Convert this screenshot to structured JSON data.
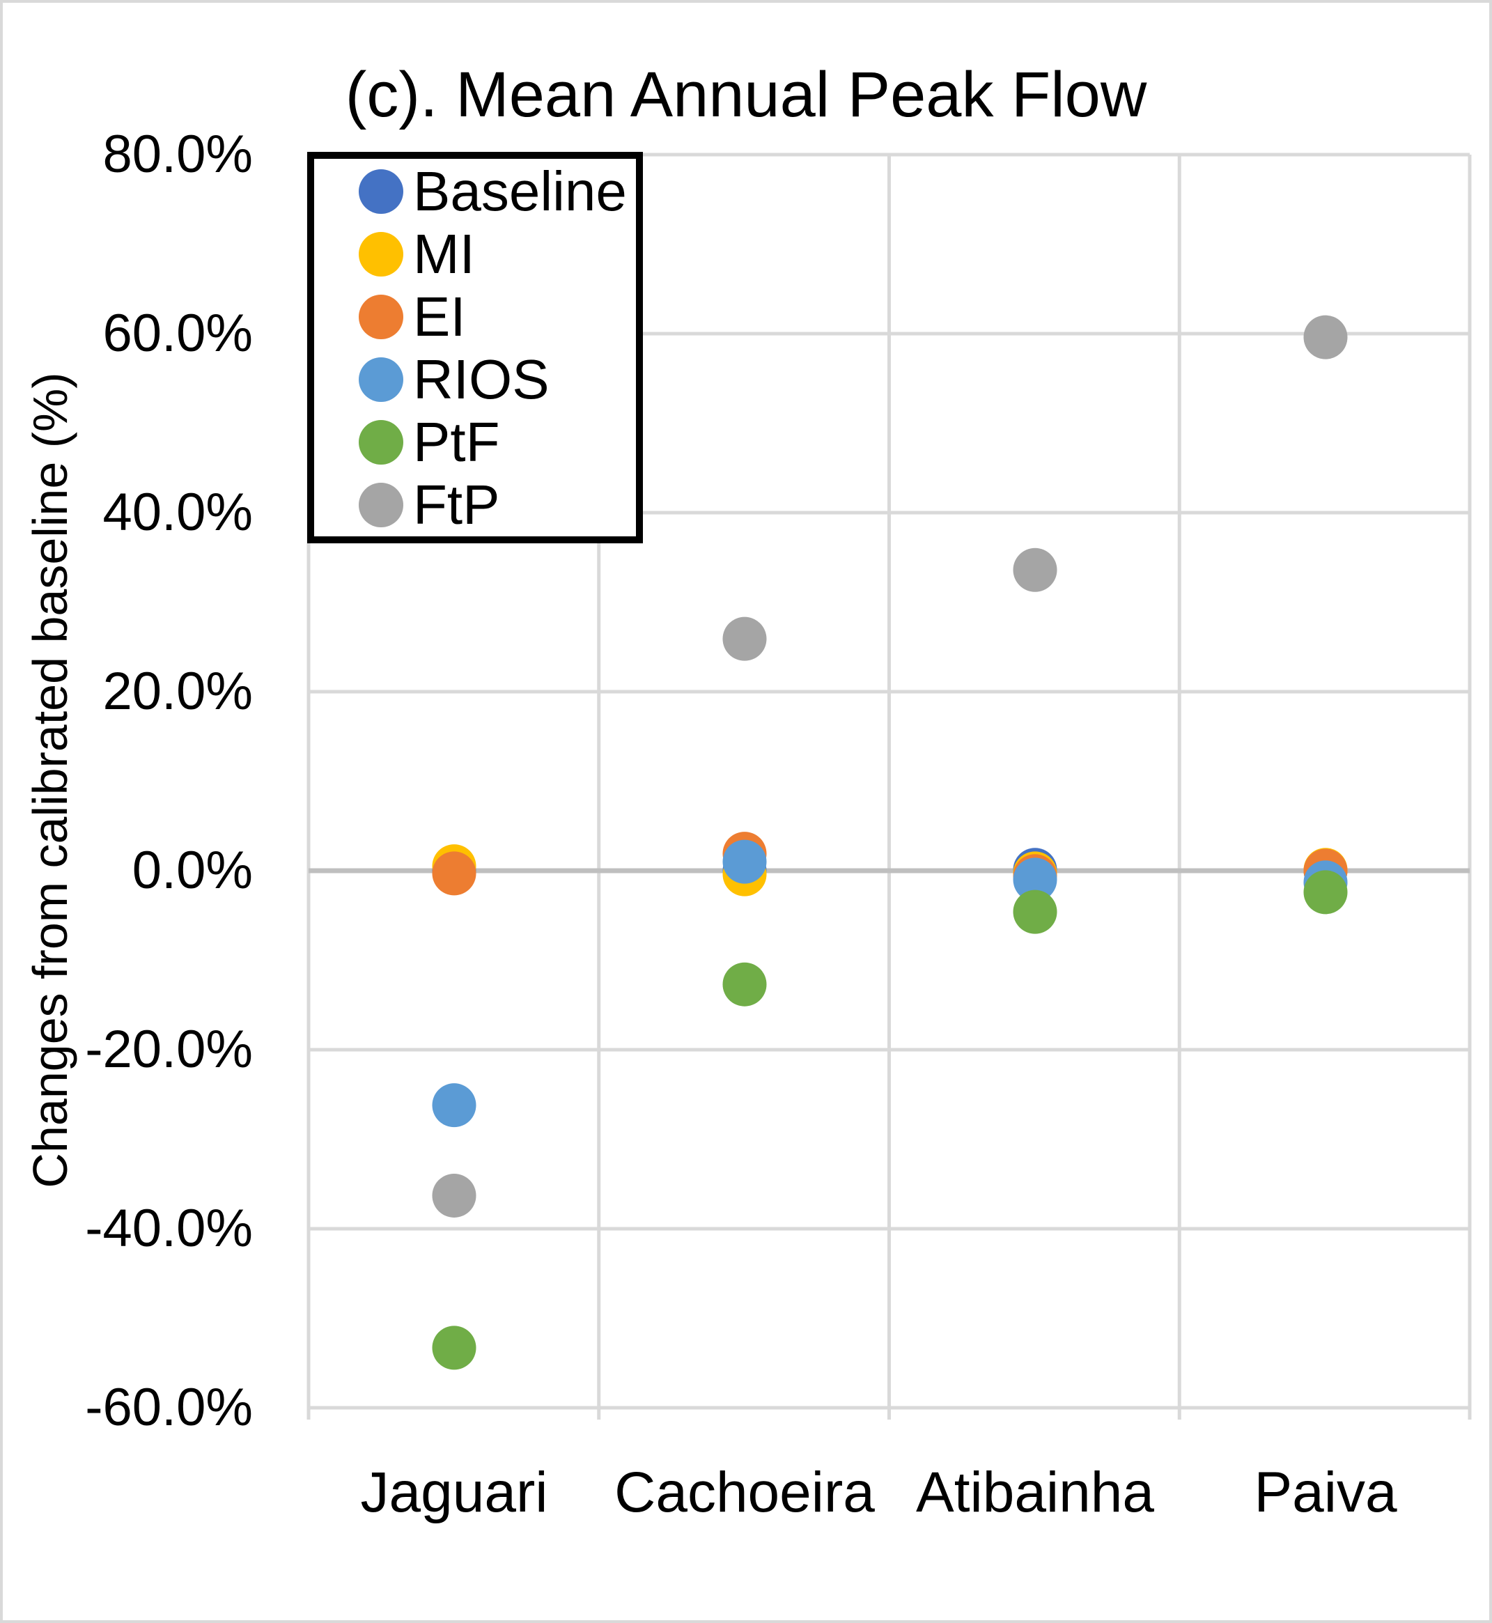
{
  "chart_data": {
    "type": "scatter",
    "title": "(c). Mean Annual Peak Flow",
    "ylabel": "Changes from calibrated baseline (%)",
    "categories": [
      "Jaguari",
      "Cachoeira",
      "Atibainha",
      "Paiva"
    ],
    "ylim": [
      -60,
      80
    ],
    "ytick_step": 20,
    "ytick_values": [
      80,
      60,
      40,
      20,
      0,
      -20,
      -40,
      -60
    ],
    "ytick_labels": [
      "80.0%",
      "60.0%",
      "40.0%",
      "20.0%",
      "0.0%",
      "-20.0%",
      "-40.0%",
      "-60.0%"
    ],
    "grid": true,
    "legend_position": "upper-left",
    "colors": {
      "gridline": "#d9d9d9",
      "zero_line": "#bfbfbf",
      "chart_border": "#d9d9d9",
      "legend_border": "#000000",
      "text": "#000000"
    },
    "series": [
      {
        "name": "Baseline",
        "color": "#4472C4",
        "values": [
          0.0,
          0.0,
          0.1,
          0.0
        ]
      },
      {
        "name": "MI",
        "color": "#FFC000",
        "values": [
          0.5,
          -0.4,
          -0.3,
          0.1
        ]
      },
      {
        "name": "EI",
        "color": "#ED7D31",
        "values": [
          -0.3,
          1.9,
          -0.6,
          0.0
        ]
      },
      {
        "name": "RIOS",
        "color": "#5B9BD5",
        "values": [
          -26.2,
          1.0,
          -1.0,
          -1.3
        ]
      },
      {
        "name": "PtF",
        "color": "#70AD47",
        "values": [
          -53.3,
          -12.7,
          -4.6,
          -2.4
        ]
      },
      {
        "name": "FtP",
        "color": "#A5A5A5",
        "values": [
          -36.3,
          25.9,
          33.6,
          59.6
        ]
      }
    ]
  }
}
